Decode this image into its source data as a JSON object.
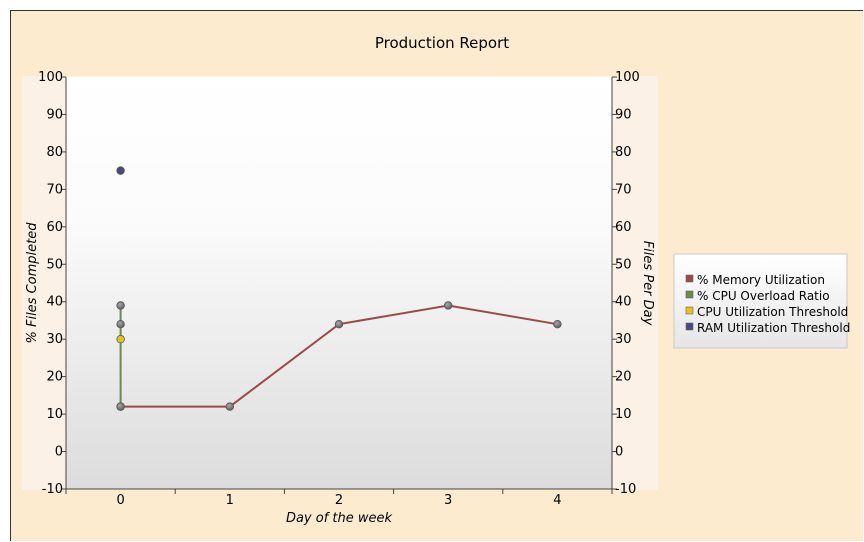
{
  "chart_data": {
    "type": "line",
    "title": "Production Report",
    "xlabel": "Day of the week",
    "ylabel": "% Files Completed",
    "y2label": "Files Per Day",
    "xlim": [
      -0.5,
      4.5
    ],
    "ylim": [
      -10,
      100
    ],
    "y2lim": [
      -10,
      100
    ],
    "x_ticks": [
      "0",
      "1",
      "2",
      "3",
      "4"
    ],
    "y_ticks": [
      "-10",
      "0",
      "10",
      "20",
      "30",
      "40",
      "50",
      "60",
      "70",
      "80",
      "90",
      "100"
    ],
    "y2_ticks": [
      "-10",
      "0",
      "10",
      "20",
      "30",
      "40",
      "50",
      "60",
      "70",
      "80",
      "90",
      "100"
    ],
    "grid": false,
    "legend_position": "right",
    "series": [
      {
        "name": "% Memory Utilization",
        "color": "#9b4a4a",
        "x": [
          0,
          1,
          2,
          3,
          4
        ],
        "values": [
          12,
          12,
          34,
          39,
          34
        ],
        "line": true
      },
      {
        "name": "% CPU Overload Ratio",
        "color": "#6b8a4e",
        "x": [
          0,
          0,
          0
        ],
        "values": [
          12,
          34,
          39
        ],
        "line": true
      },
      {
        "name": "CPU Utilization Threshold",
        "color": "#e8c020",
        "x": [
          0
        ],
        "values": [
          30
        ],
        "line": false
      },
      {
        "name": "RAM Utilization Threshold",
        "color": "#4a4a78",
        "x": [
          0
        ],
        "values": [
          75
        ],
        "line": false
      }
    ]
  }
}
